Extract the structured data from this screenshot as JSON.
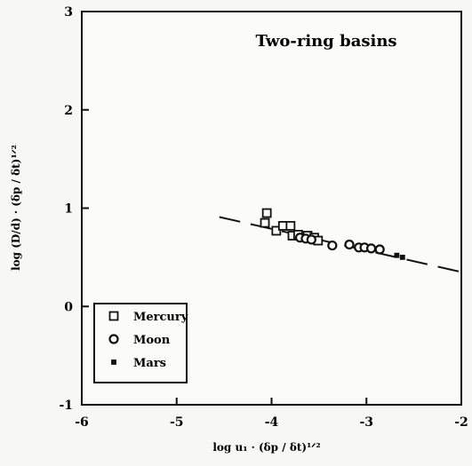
{
  "chart_data": {
    "type": "scatter",
    "title": "Two-ring basins",
    "xlabel": "log u₁ · (δp / δt)¹ᐟ²",
    "ylabel": "log (D/d) · (δp / δt)¹ᐟ²",
    "xlim": [
      -6,
      -2
    ],
    "ylim": [
      -1,
      3
    ],
    "xticks": [
      "-6",
      "-5",
      "-4",
      "-3",
      "-2"
    ],
    "yticks": [
      "-1",
      "0",
      "1",
      "2",
      "3"
    ],
    "legend_position": "bottom-left",
    "grid": false,
    "series": [
      {
        "name": "Mercury",
        "marker": "square",
        "points": [
          {
            "x": -4.05,
            "y": 0.95
          },
          {
            "x": -4.07,
            "y": 0.85
          },
          {
            "x": -3.95,
            "y": 0.77
          },
          {
            "x": -3.88,
            "y": 0.82
          },
          {
            "x": -3.8,
            "y": 0.82
          },
          {
            "x": -3.78,
            "y": 0.72
          },
          {
            "x": -3.72,
            "y": 0.73
          },
          {
            "x": -3.62,
            "y": 0.72
          },
          {
            "x": -3.55,
            "y": 0.7
          },
          {
            "x": -3.51,
            "y": 0.67
          }
        ]
      },
      {
        "name": "Moon",
        "marker": "circle",
        "points": [
          {
            "x": -3.7,
            "y": 0.7
          },
          {
            "x": -3.64,
            "y": 0.69
          },
          {
            "x": -3.58,
            "y": 0.68
          },
          {
            "x": -3.36,
            "y": 0.62
          },
          {
            "x": -3.18,
            "y": 0.63
          },
          {
            "x": -3.08,
            "y": 0.6
          },
          {
            "x": -3.02,
            "y": 0.6
          },
          {
            "x": -2.95,
            "y": 0.59
          },
          {
            "x": -2.86,
            "y": 0.58
          }
        ]
      },
      {
        "name": "Mars",
        "marker": "small-square",
        "points": [
          {
            "x": -2.68,
            "y": 0.52
          },
          {
            "x": -2.62,
            "y": 0.5
          }
        ]
      }
    ],
    "trend_line": {
      "style": "dashed",
      "points": [
        {
          "x": -4.55,
          "y": 0.91
        },
        {
          "x": -2.0,
          "y": 0.35
        }
      ]
    }
  }
}
